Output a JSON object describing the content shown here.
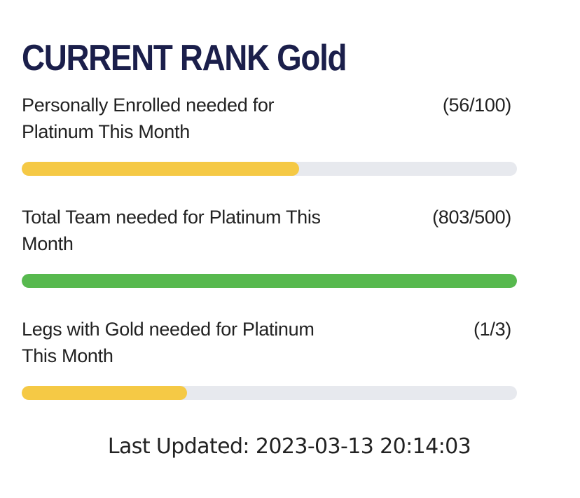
{
  "header": {
    "title": "CURRENT RANK Gold"
  },
  "metrics": [
    {
      "label": "Personally Enrolled needed for Platinum This Month",
      "count": "(56/100)",
      "progress_fraction": 0.56,
      "bar_color": "#f5c945"
    },
    {
      "label": "Total Team needed for Platinum This Month",
      "count": "(803/500)",
      "progress_fraction": 1.0,
      "bar_color": "#57b94e"
    },
    {
      "label": "Legs with Gold needed for Platinum This Month",
      "count": "(1/3)",
      "progress_fraction": 0.3333,
      "bar_color": "#f5c945"
    }
  ],
  "footer": {
    "last_updated": "Last Updated: 2023-03-13 20:14:03"
  },
  "colors": {
    "title": "#1b1f4b",
    "track": "#e7e9ee",
    "text": "#222222"
  }
}
